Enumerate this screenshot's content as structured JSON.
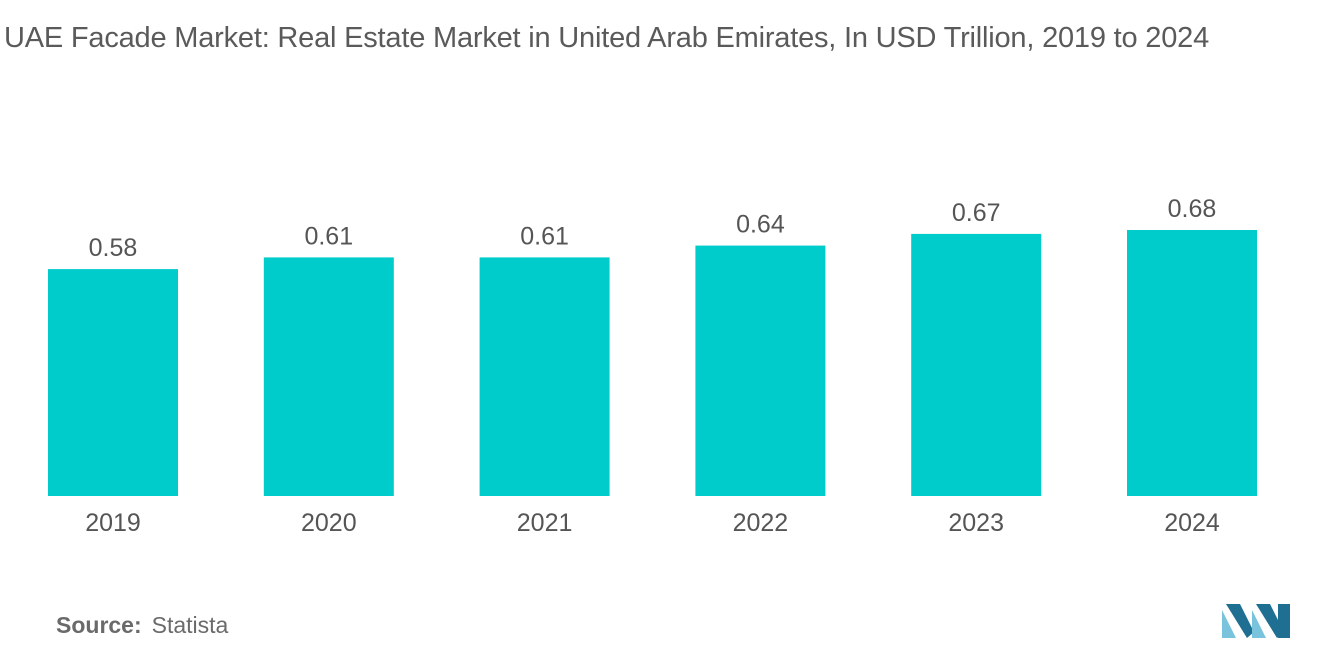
{
  "chart_data": {
    "type": "bar",
    "title": "UAE Facade Market: Real Estate Market in United Arab Emirates, In USD Trillion, 2019 to 2024",
    "categories": [
      "2019",
      "2020",
      "2021",
      "2022",
      "2023",
      "2024"
    ],
    "values": [
      0.58,
      0.61,
      0.61,
      0.64,
      0.67,
      0.68
    ],
    "value_labels": [
      "0.58",
      "0.61",
      "0.61",
      "0.64",
      "0.67",
      "0.68"
    ],
    "xlabel": "",
    "ylabel": "",
    "ylim": [
      0,
      0.68
    ],
    "grid": false,
    "bar_color": "#00cccc"
  },
  "footer": {
    "source_label": "Source:",
    "source_value": "Statista"
  },
  "colors": {
    "title": "#5a5a5a",
    "axis_text": "#555555",
    "logo_light": "#79c3dc",
    "logo_dark": "#1f6f93"
  }
}
